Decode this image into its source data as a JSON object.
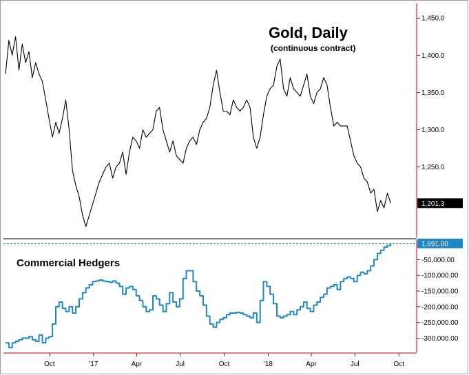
{
  "chart_data": [
    {
      "type": "line",
      "title": "Gold, Daily",
      "subtitle": "(continuous contract)",
      "ylim": [
        1160,
        1465
      ],
      "yticks": [
        1250.0,
        1300.0,
        1350.0,
        1400.0,
        1450.0
      ],
      "ytick_labels": [
        "1,250.0",
        "1,300.0",
        "1,350.0",
        "1,400.0",
        "1,450.0"
      ],
      "last_value": 1201.3,
      "last_value_label": "1,201.3",
      "grid": false,
      "colors": {
        "line": "#000000",
        "axis": "#cc0000",
        "badge_bg": "#000000",
        "badge_text": "#ffffff"
      },
      "series": [
        {
          "x": [
            "2016-07-01",
            "2016-07-08",
            "2016-07-15",
            "2016-07-22",
            "2016-07-29",
            "2016-08-05",
            "2016-08-12",
            "2016-08-19",
            "2016-08-26",
            "2016-09-02",
            "2016-09-09",
            "2016-09-16",
            "2016-09-23",
            "2016-09-30",
            "2016-10-07",
            "2016-10-14",
            "2016-10-21",
            "2016-10-28",
            "2016-11-04",
            "2016-11-11",
            "2016-11-18",
            "2016-11-25",
            "2016-12-02",
            "2016-12-09",
            "2016-12-16",
            "2016-12-23",
            "2016-12-30",
            "2017-01-06",
            "2017-01-13",
            "2017-01-20",
            "2017-01-27",
            "2017-02-03",
            "2017-02-10",
            "2017-02-17",
            "2017-02-24",
            "2017-03-03",
            "2017-03-10",
            "2017-03-17",
            "2017-03-24",
            "2017-03-31",
            "2017-04-07",
            "2017-04-14",
            "2017-04-21",
            "2017-04-28",
            "2017-05-05",
            "2017-05-12",
            "2017-05-19",
            "2017-05-26",
            "2017-06-02",
            "2017-06-09",
            "2017-06-16",
            "2017-06-23",
            "2017-06-30",
            "2017-07-07",
            "2017-07-14",
            "2017-07-21",
            "2017-07-28",
            "2017-08-04",
            "2017-08-11",
            "2017-08-18",
            "2017-08-25",
            "2017-09-01",
            "2017-09-08",
            "2017-09-15",
            "2017-09-22",
            "2017-09-29",
            "2017-10-06",
            "2017-10-13",
            "2017-10-20",
            "2017-10-27",
            "2017-11-03",
            "2017-11-10",
            "2017-11-17",
            "2017-11-24",
            "2017-12-01",
            "2017-12-08",
            "2017-12-15",
            "2017-12-22",
            "2017-12-29",
            "2018-01-05",
            "2018-01-12",
            "2018-01-19",
            "2018-01-26",
            "2018-02-02",
            "2018-02-09",
            "2018-02-16",
            "2018-02-23",
            "2018-03-02",
            "2018-03-09",
            "2018-03-16",
            "2018-03-23",
            "2018-03-30",
            "2018-04-06",
            "2018-04-13",
            "2018-04-20",
            "2018-04-27",
            "2018-05-04",
            "2018-05-11",
            "2018-05-18",
            "2018-05-25",
            "2018-06-01",
            "2018-06-08",
            "2018-06-15",
            "2018-06-22",
            "2018-06-29",
            "2018-07-06",
            "2018-07-13",
            "2018-07-20",
            "2018-07-27",
            "2018-08-03",
            "2018-08-10",
            "2018-08-17",
            "2018-08-24",
            "2018-08-31",
            "2018-09-07",
            "2018-09-14"
          ],
          "values": [
            1375,
            1420,
            1400,
            1425,
            1380,
            1415,
            1390,
            1405,
            1370,
            1390,
            1375,
            1365,
            1340,
            1315,
            1290,
            1310,
            1295,
            1315,
            1340,
            1300,
            1245,
            1225,
            1210,
            1185,
            1170,
            1185,
            1200,
            1215,
            1230,
            1240,
            1250,
            1255,
            1235,
            1250,
            1255,
            1270,
            1240,
            1270,
            1290,
            1285,
            1275,
            1300,
            1290,
            1295,
            1300,
            1325,
            1330,
            1300,
            1285,
            1270,
            1285,
            1265,
            1260,
            1255,
            1275,
            1285,
            1290,
            1280,
            1300,
            1310,
            1315,
            1330,
            1360,
            1380,
            1350,
            1325,
            1325,
            1320,
            1340,
            1330,
            1325,
            1330,
            1340,
            1330,
            1290,
            1275,
            1290,
            1320,
            1345,
            1355,
            1360,
            1385,
            1395,
            1355,
            1345,
            1370,
            1355,
            1350,
            1345,
            1360,
            1375,
            1345,
            1335,
            1350,
            1355,
            1370,
            1360,
            1330,
            1305,
            1310,
            1305,
            1305,
            1305,
            1285,
            1265,
            1255,
            1250,
            1235,
            1230,
            1215,
            1220,
            1190,
            1205,
            1195,
            1215,
            1201.3
          ]
        }
      ]
    },
    {
      "type": "line",
      "title": "Commercial Hedgers",
      "ylim": [
        -345000,
        10000
      ],
      "yticks": [
        -300000,
        -250000,
        -200000,
        -150000,
        -100000,
        -50000
      ],
      "ytick_labels": [
        "-300,000.00",
        "-250,000.00",
        "-200,000.00",
        "-150,000.00",
        "-100,000.00",
        "-50,000.00"
      ],
      "last_value": 1691.0,
      "last_value_label": "1,691.00",
      "grid": false,
      "reference_line": {
        "value": 1691.0,
        "style": "dashed",
        "color": "#007a2f"
      },
      "colors": {
        "line": "#1e88c7",
        "axis": "#cc0000",
        "badge_bg": "#1e88c7",
        "badge_text": "#ffffff"
      },
      "series": [
        {
          "x": [
            "2016-07-01",
            "2016-07-08",
            "2016-07-15",
            "2016-07-22",
            "2016-07-29",
            "2016-08-05",
            "2016-08-12",
            "2016-08-19",
            "2016-08-26",
            "2016-09-02",
            "2016-09-09",
            "2016-09-16",
            "2016-09-23",
            "2016-09-30",
            "2016-10-07",
            "2016-10-14",
            "2016-10-21",
            "2016-10-28",
            "2016-11-04",
            "2016-11-11",
            "2016-11-18",
            "2016-11-25",
            "2016-12-02",
            "2016-12-09",
            "2016-12-16",
            "2016-12-23",
            "2016-12-30",
            "2017-01-06",
            "2017-01-13",
            "2017-01-20",
            "2017-01-27",
            "2017-02-03",
            "2017-02-10",
            "2017-02-17",
            "2017-02-24",
            "2017-03-03",
            "2017-03-10",
            "2017-03-17",
            "2017-03-24",
            "2017-03-31",
            "2017-04-07",
            "2017-04-14",
            "2017-04-21",
            "2017-04-28",
            "2017-05-05",
            "2017-05-12",
            "2017-05-19",
            "2017-05-26",
            "2017-06-02",
            "2017-06-09",
            "2017-06-16",
            "2017-06-23",
            "2017-06-30",
            "2017-07-07",
            "2017-07-14",
            "2017-07-21",
            "2017-07-28",
            "2017-08-04",
            "2017-08-11",
            "2017-08-18",
            "2017-08-25",
            "2017-09-01",
            "2017-09-08",
            "2017-09-15",
            "2017-09-22",
            "2017-09-29",
            "2017-10-06",
            "2017-10-13",
            "2017-10-20",
            "2017-10-27",
            "2017-11-03",
            "2017-11-10",
            "2017-11-17",
            "2017-11-24",
            "2017-12-01",
            "2017-12-08",
            "2017-12-15",
            "2017-12-22",
            "2017-12-29",
            "2018-01-05",
            "2018-01-12",
            "2018-01-19",
            "2018-01-26",
            "2018-02-02",
            "2018-02-09",
            "2018-02-16",
            "2018-02-23",
            "2018-03-02",
            "2018-03-09",
            "2018-03-16",
            "2018-03-23",
            "2018-03-30",
            "2018-04-06",
            "2018-04-13",
            "2018-04-20",
            "2018-04-27",
            "2018-05-04",
            "2018-05-11",
            "2018-05-18",
            "2018-05-25",
            "2018-06-01",
            "2018-06-08",
            "2018-06-15",
            "2018-06-22",
            "2018-06-29",
            "2018-07-06",
            "2018-07-13",
            "2018-07-20",
            "2018-07-27",
            "2018-08-03",
            "2018-08-10",
            "2018-08-17",
            "2018-08-24",
            "2018-08-31",
            "2018-09-07",
            "2018-09-14"
          ],
          "values": [
            -315000,
            -330000,
            -315000,
            -310000,
            -305000,
            -300000,
            -300000,
            -295000,
            -305000,
            -310000,
            -290000,
            -315000,
            -300000,
            -295000,
            -255000,
            -200000,
            -185000,
            -205000,
            -215000,
            -200000,
            -220000,
            -200000,
            -175000,
            -155000,
            -140000,
            -130000,
            -120000,
            -118000,
            -115000,
            -118000,
            -120000,
            -122000,
            -118000,
            -125000,
            -135000,
            -160000,
            -140000,
            -135000,
            -145000,
            -165000,
            -180000,
            -200000,
            -215000,
            -210000,
            -165000,
            -175000,
            -195000,
            -215000,
            -190000,
            -155000,
            -185000,
            -200000,
            -175000,
            -110000,
            -85000,
            -85000,
            -120000,
            -150000,
            -165000,
            -195000,
            -230000,
            -255000,
            -265000,
            -250000,
            -240000,
            -235000,
            -225000,
            -220000,
            -220000,
            -218000,
            -220000,
            -225000,
            -230000,
            -235000,
            -220000,
            -250000,
            -180000,
            -120000,
            -135000,
            -160000,
            -190000,
            -230000,
            -235000,
            -230000,
            -225000,
            -215000,
            -225000,
            -210000,
            -200000,
            -185000,
            -205000,
            -215000,
            -195000,
            -185000,
            -170000,
            -160000,
            -140000,
            -135000,
            -130000,
            -145000,
            -120000,
            -110000,
            -105000,
            -110000,
            -120000,
            -100000,
            -90000,
            -95000,
            -85000,
            -70000,
            -50000,
            -30000,
            -20000,
            -10000,
            -5000,
            1691
          ]
        }
      ]
    }
  ],
  "x_axis": {
    "ticks": [
      "2016-10-01",
      "2017-01-01",
      "2017-04-01",
      "2017-07-01",
      "2017-10-01",
      "2018-01-01",
      "2018-04-01",
      "2018-07-01",
      "2018-10-01"
    ],
    "tick_labels": [
      "Oct",
      "'17",
      "Apr",
      "Jul",
      "Oct",
      "'18",
      "Apr",
      "Jul",
      "Oct"
    ],
    "range": [
      "2016-07-01",
      "2018-10-31"
    ]
  }
}
